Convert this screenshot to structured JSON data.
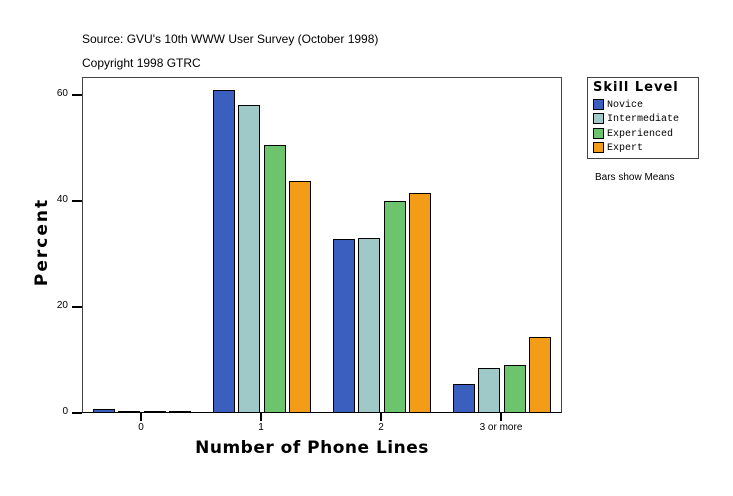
{
  "header": {
    "source": "Source: GVU's 10th WWW User Survey (October 1998)",
    "copyright": "Copyright 1998 GTRC"
  },
  "note": "Bars show Means",
  "legend": {
    "title": "Skill Level",
    "items": [
      {
        "label": "Novice",
        "color": "#3a5fbf"
      },
      {
        "label": "Intermediate",
        "color": "#9fc8c8"
      },
      {
        "label": "Experienced",
        "color": "#6cc46c"
      },
      {
        "label": "Expert",
        "color": "#f39c18"
      }
    ]
  },
  "chart_data": {
    "type": "bar",
    "title": "",
    "xlabel": "Number of Phone Lines",
    "ylabel": "Percent",
    "categories": [
      "0",
      "1",
      "2",
      "3 or more"
    ],
    "series": [
      {
        "name": "Novice",
        "color": "#3a5fbf",
        "values": [
          0.8,
          61.0,
          32.8,
          5.5
        ]
      },
      {
        "name": "Intermediate",
        "color": "#9fc8c8",
        "values": [
          0.2,
          58.2,
          33.0,
          8.5
        ]
      },
      {
        "name": "Experienced",
        "color": "#6cc46c",
        "values": [
          0.4,
          50.6,
          40.0,
          9.1
        ]
      },
      {
        "name": "Expert",
        "color": "#f39c18",
        "values": [
          0.2,
          43.8,
          41.6,
          14.3
        ]
      }
    ],
    "yticks": [
      "0",
      "20",
      "40",
      "60"
    ],
    "ylim": [
      0,
      60
    ],
    "grid": false,
    "legend_position": "right",
    "annotation": "Bars show Means"
  }
}
